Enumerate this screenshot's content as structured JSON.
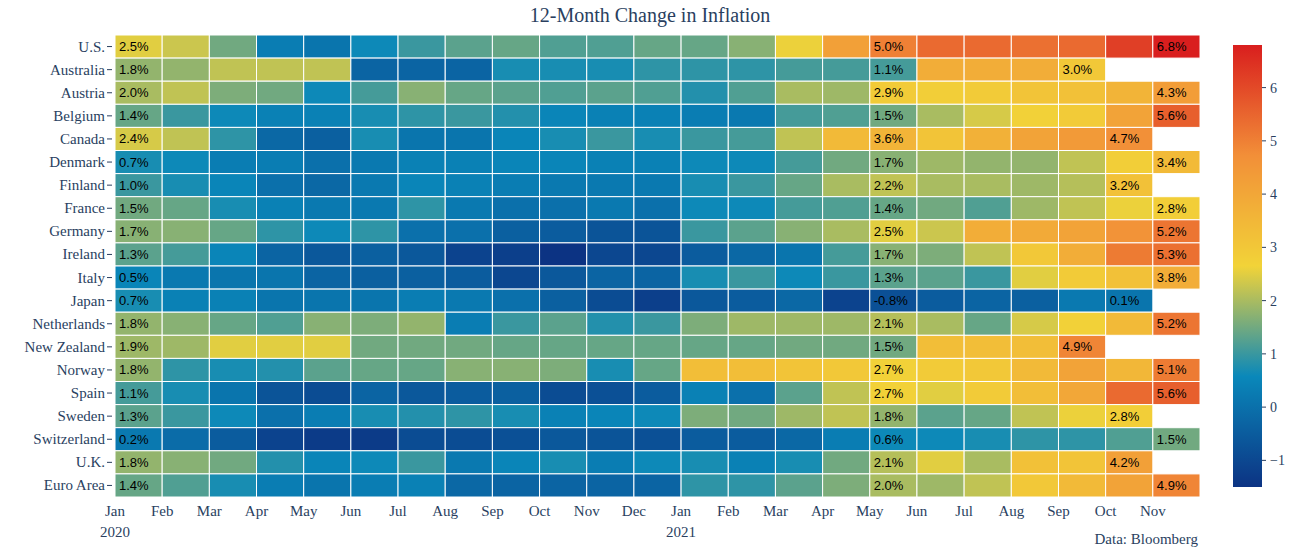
{
  "chart_data": {
    "type": "heatmap",
    "title": "12-Month Change in Inflation",
    "source": "Data: Bloomberg",
    "categories": [
      "Jan\n2020",
      "Feb",
      "Mar",
      "Apr",
      "May",
      "Jun",
      "Jul",
      "Aug",
      "Sep",
      "Oct",
      "Nov",
      "Dec",
      "Jan\n2021",
      "Feb",
      "Mar",
      "Apr",
      "May",
      "Jun",
      "Jul",
      "Aug",
      "Sep",
      "Oct",
      "Nov"
    ],
    "series": [
      {
        "name": "U.S.",
        "values": [
          2.5,
          2.3,
          1.5,
          0.3,
          0.1,
          0.6,
          1.0,
          1.3,
          1.4,
          1.2,
          1.2,
          1.4,
          1.4,
          1.7,
          2.6,
          4.2,
          5.0,
          5.4,
          5.4,
          5.3,
          5.4,
          6.2,
          6.8
        ],
        "value_labels": [
          "2.5%",
          null,
          null,
          null,
          null,
          null,
          null,
          null,
          null,
          null,
          null,
          null,
          null,
          null,
          null,
          null,
          "5.0%",
          null,
          null,
          null,
          null,
          null,
          "6.8%"
        ]
      },
      {
        "name": "Australia",
        "values": [
          1.8,
          1.8,
          2.2,
          2.2,
          2.2,
          -0.3,
          -0.3,
          -0.3,
          0.7,
          0.7,
          0.7,
          0.9,
          0.9,
          0.9,
          1.1,
          1.1,
          1.1,
          3.8,
          3.8,
          3.8,
          3.0,
          null,
          null
        ],
        "value_labels": [
          "1.8%",
          null,
          null,
          null,
          null,
          null,
          null,
          null,
          null,
          null,
          null,
          null,
          null,
          null,
          null,
          null,
          "1.1%",
          null,
          null,
          null,
          "3.0%",
          null,
          null
        ]
      },
      {
        "name": "Austria",
        "values": [
          2.0,
          2.2,
          1.6,
          1.5,
          0.6,
          1.1,
          1.7,
          1.4,
          1.3,
          1.2,
          1.3,
          1.2,
          0.8,
          1.2,
          2.0,
          1.9,
          2.9,
          2.8,
          2.9,
          3.1,
          3.2,
          3.6,
          4.3
        ],
        "value_labels": [
          "2.0%",
          null,
          null,
          null,
          null,
          null,
          null,
          null,
          null,
          null,
          null,
          null,
          null,
          null,
          null,
          null,
          "2.9%",
          null,
          null,
          null,
          null,
          null,
          "4.3%"
        ]
      },
      {
        "name": "Belgium",
        "values": [
          1.4,
          1.0,
          0.6,
          0.4,
          0.4,
          0.7,
          0.9,
          1.0,
          0.8,
          0.5,
          0.4,
          0.4,
          0.3,
          0.2,
          1.1,
          1.2,
          1.5,
          2.0,
          2.4,
          2.7,
          2.9,
          4.1,
          5.6
        ],
        "value_labels": [
          "1.4%",
          null,
          null,
          null,
          null,
          null,
          null,
          null,
          null,
          null,
          null,
          null,
          null,
          null,
          null,
          null,
          "1.5%",
          null,
          null,
          null,
          null,
          null,
          "5.6%"
        ]
      },
      {
        "name": "Canada",
        "values": [
          2.4,
          2.2,
          0.9,
          -0.2,
          -0.4,
          0.7,
          0.1,
          0.1,
          0.5,
          0.7,
          1.0,
          0.7,
          1.0,
          1.1,
          2.2,
          3.4,
          3.6,
          3.1,
          3.7,
          4.1,
          4.4,
          4.7,
          null
        ],
        "value_labels": [
          "2.4%",
          null,
          null,
          null,
          null,
          null,
          null,
          null,
          null,
          null,
          null,
          null,
          null,
          null,
          null,
          null,
          "3.6%",
          null,
          null,
          null,
          null,
          "4.7%",
          null
        ]
      },
      {
        "name": "Denmark",
        "values": [
          0.7,
          0.6,
          0.3,
          0.3,
          0.0,
          0.2,
          0.4,
          0.4,
          0.5,
          0.5,
          0.4,
          0.4,
          0.6,
          0.6,
          1.1,
          1.5,
          1.7,
          1.9,
          1.8,
          1.8,
          2.2,
          2.8,
          3.4
        ],
        "value_labels": [
          "0.7%",
          null,
          null,
          null,
          null,
          null,
          null,
          null,
          null,
          null,
          null,
          null,
          null,
          null,
          null,
          null,
          "1.7%",
          null,
          null,
          null,
          null,
          null,
          "3.4%"
        ]
      },
      {
        "name": "Finland",
        "values": [
          1.0,
          0.7,
          0.5,
          0.0,
          -0.2,
          0.2,
          0.5,
          0.4,
          0.3,
          0.2,
          0.2,
          0.2,
          0.7,
          1.0,
          1.4,
          2.0,
          2.2,
          2.0,
          2.0,
          1.9,
          2.1,
          3.2,
          null
        ],
        "value_labels": [
          "1.0%",
          null,
          null,
          null,
          null,
          null,
          null,
          null,
          null,
          null,
          null,
          null,
          null,
          null,
          null,
          null,
          "2.2%",
          null,
          null,
          null,
          null,
          "3.2%",
          null
        ]
      },
      {
        "name": "France",
        "values": [
          1.5,
          1.4,
          0.7,
          0.4,
          0.2,
          0.2,
          0.9,
          0.2,
          0.0,
          0.0,
          0.2,
          0.0,
          0.6,
          0.6,
          1.1,
          1.2,
          1.4,
          1.5,
          1.2,
          1.9,
          2.2,
          2.6,
          2.8
        ],
        "value_labels": [
          "1.5%",
          null,
          null,
          null,
          null,
          null,
          null,
          null,
          null,
          null,
          null,
          null,
          null,
          null,
          null,
          null,
          "1.4%",
          null,
          null,
          null,
          null,
          null,
          "2.8%"
        ]
      },
      {
        "name": "Germany",
        "values": [
          1.7,
          1.7,
          1.4,
          0.9,
          0.6,
          0.9,
          0.0,
          0.0,
          -0.4,
          -0.5,
          -0.7,
          -0.7,
          1.0,
          1.3,
          1.7,
          2.0,
          2.5,
          2.3,
          3.8,
          3.9,
          4.1,
          4.6,
          5.2
        ],
        "value_labels": [
          "1.7%",
          null,
          null,
          null,
          null,
          null,
          null,
          null,
          null,
          null,
          null,
          null,
          null,
          null,
          null,
          null,
          "2.5%",
          null,
          null,
          null,
          null,
          null,
          "5.2%"
        ]
      },
      {
        "name": "Ireland",
        "values": [
          1.3,
          1.1,
          0.5,
          -0.3,
          -0.6,
          -0.4,
          -0.6,
          -1.1,
          -1.2,
          -1.5,
          -1.0,
          -1.0,
          -0.5,
          -0.2,
          0.1,
          1.1,
          1.7,
          1.6,
          2.2,
          3.0,
          3.8,
          5.1,
          5.3
        ],
        "value_labels": [
          "1.3%",
          null,
          null,
          null,
          null,
          null,
          null,
          null,
          null,
          null,
          null,
          null,
          null,
          null,
          null,
          null,
          "1.7%",
          null,
          null,
          null,
          null,
          null,
          "5.3%"
        ]
      },
      {
        "name": "Italy",
        "values": [
          0.5,
          0.2,
          0.1,
          0.1,
          -0.3,
          -0.4,
          -0.4,
          -0.5,
          -1.0,
          -0.6,
          -0.3,
          -0.3,
          0.7,
          1.0,
          0.6,
          1.0,
          1.3,
          1.3,
          1.0,
          2.5,
          2.9,
          3.2,
          3.8
        ],
        "value_labels": [
          "0.5%",
          null,
          null,
          null,
          null,
          null,
          null,
          null,
          null,
          null,
          null,
          null,
          null,
          null,
          null,
          null,
          "1.3%",
          null,
          null,
          null,
          null,
          null,
          "3.8%"
        ]
      },
      {
        "name": "Japan",
        "values": [
          0.7,
          0.4,
          0.4,
          0.1,
          0.1,
          0.1,
          0.3,
          0.2,
          0.0,
          -0.4,
          -0.9,
          -1.2,
          -0.6,
          -0.5,
          -0.2,
          -1.1,
          -0.8,
          -0.5,
          -0.3,
          -0.4,
          0.2,
          0.1,
          null
        ],
        "value_labels": [
          "0.7%",
          null,
          null,
          null,
          null,
          null,
          null,
          null,
          null,
          null,
          null,
          null,
          null,
          null,
          null,
          null,
          "-0.8%",
          null,
          null,
          null,
          null,
          "0.1%",
          null
        ]
      },
      {
        "name": "Netherlands",
        "values": [
          1.8,
          1.7,
          1.4,
          1.2,
          1.7,
          1.6,
          1.8,
          0.3,
          1.0,
          1.3,
          0.8,
          1.0,
          1.6,
          1.9,
          1.9,
          1.9,
          2.1,
          2.0,
          1.4,
          2.4,
          2.7,
          3.4,
          5.2
        ],
        "value_labels": [
          "1.8%",
          null,
          null,
          null,
          null,
          null,
          null,
          null,
          null,
          null,
          null,
          null,
          null,
          null,
          null,
          null,
          "2.1%",
          null,
          null,
          null,
          null,
          null,
          "5.2%"
        ]
      },
      {
        "name": "New Zealand",
        "values": [
          1.9,
          1.9,
          2.5,
          2.5,
          2.5,
          1.5,
          1.5,
          1.5,
          1.4,
          1.4,
          1.4,
          1.4,
          1.4,
          1.4,
          1.5,
          1.5,
          1.5,
          3.3,
          3.3,
          3.3,
          4.9,
          null,
          null
        ],
        "value_labels": [
          "1.9%",
          null,
          null,
          null,
          null,
          null,
          null,
          null,
          null,
          null,
          null,
          null,
          null,
          null,
          null,
          null,
          "1.5%",
          null,
          null,
          null,
          "4.9%",
          null,
          null
        ]
      },
      {
        "name": "Norway",
        "values": [
          1.8,
          0.9,
          0.7,
          0.8,
          1.3,
          1.4,
          1.4,
          1.7,
          1.7,
          1.6,
          0.7,
          1.4,
          3.3,
          3.3,
          3.1,
          3.0,
          2.7,
          2.9,
          3.0,
          3.4,
          4.1,
          3.5,
          5.1
        ],
        "value_labels": [
          "1.8%",
          null,
          null,
          null,
          null,
          null,
          null,
          null,
          null,
          null,
          null,
          null,
          null,
          null,
          null,
          null,
          "2.7%",
          null,
          null,
          null,
          null,
          null,
          "5.1%"
        ]
      },
      {
        "name": "Spain",
        "values": [
          1.1,
          0.7,
          0.1,
          -0.7,
          -0.9,
          -0.3,
          -0.6,
          -0.5,
          -0.4,
          -0.9,
          -0.8,
          -0.5,
          0.4,
          0.0,
          1.3,
          2.2,
          2.7,
          2.5,
          2.9,
          3.3,
          4.0,
          5.4,
          5.6
        ],
        "value_labels": [
          "1.1%",
          null,
          null,
          null,
          null,
          null,
          null,
          null,
          null,
          null,
          null,
          null,
          null,
          null,
          null,
          null,
          "2.7%",
          null,
          null,
          null,
          null,
          null,
          "5.6%"
        ]
      },
      {
        "name": "Sweden",
        "values": [
          1.3,
          1.0,
          0.6,
          0.0,
          0.3,
          0.7,
          0.8,
          0.9,
          0.7,
          0.4,
          0.5,
          0.6,
          1.6,
          1.5,
          1.9,
          2.2,
          1.8,
          1.3,
          1.4,
          2.2,
          2.6,
          2.8,
          null
        ],
        "value_labels": [
          "1.3%",
          null,
          null,
          null,
          null,
          null,
          null,
          null,
          null,
          null,
          null,
          null,
          null,
          null,
          null,
          null,
          "1.8%",
          null,
          null,
          null,
          null,
          "2.8%",
          null
        ]
      },
      {
        "name": "Switzerland",
        "values": [
          0.2,
          -0.1,
          -0.5,
          -1.1,
          -1.3,
          -1.3,
          -0.9,
          -0.9,
          -0.8,
          -0.6,
          -0.7,
          -0.8,
          -0.5,
          -0.5,
          -0.2,
          0.3,
          0.6,
          0.6,
          0.7,
          0.9,
          0.9,
          1.2,
          1.5
        ],
        "value_labels": [
          "0.2%",
          null,
          null,
          null,
          null,
          null,
          null,
          null,
          null,
          null,
          null,
          null,
          null,
          null,
          null,
          null,
          "0.6%",
          null,
          null,
          null,
          null,
          null,
          "1.5%"
        ]
      },
      {
        "name": "U.K.",
        "values": [
          1.8,
          1.7,
          1.5,
          0.8,
          0.5,
          0.6,
          1.0,
          0.2,
          0.5,
          0.7,
          0.3,
          0.6,
          0.7,
          0.4,
          0.7,
          1.5,
          2.1,
          2.5,
          2.0,
          3.2,
          3.1,
          4.2,
          null
        ],
        "value_labels": [
          "1.8%",
          null,
          null,
          null,
          null,
          null,
          null,
          null,
          null,
          null,
          null,
          null,
          null,
          null,
          null,
          null,
          "2.1%",
          null,
          null,
          null,
          null,
          "4.2%",
          null
        ]
      },
      {
        "name": "Euro Area",
        "values": [
          1.4,
          1.2,
          0.7,
          0.3,
          0.1,
          0.3,
          0.4,
          -0.2,
          -0.3,
          -0.3,
          -0.3,
          -0.3,
          0.9,
          0.9,
          1.3,
          1.6,
          2.0,
          1.9,
          2.2,
          3.0,
          3.4,
          4.1,
          4.9
        ],
        "value_labels": [
          "1.4%",
          null,
          null,
          null,
          null,
          null,
          null,
          null,
          null,
          null,
          null,
          null,
          null,
          null,
          null,
          null,
          "2.0%",
          null,
          null,
          null,
          null,
          null,
          "4.9%"
        ]
      }
    ],
    "colorbar": {
      "range": [
        -1.5,
        6.8
      ],
      "ticks": [
        {
          "value": -1,
          "label": "−1"
        },
        0,
        1,
        2,
        3,
        4,
        5,
        6
      ]
    }
  }
}
